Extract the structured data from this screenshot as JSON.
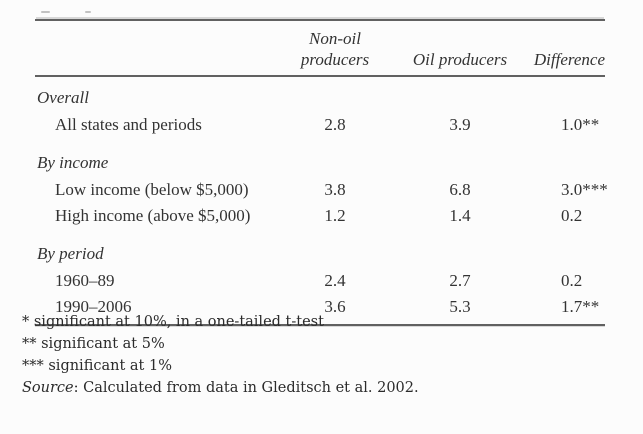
{
  "table": {
    "columns": [
      "Non-oil producers",
      "Oil producers",
      "Difference"
    ],
    "sections": [
      {
        "label": "Overall",
        "rows": [
          {
            "label": "All states and periods",
            "values": [
              "2.8",
              "3.9",
              "1.0**"
            ]
          }
        ]
      },
      {
        "label": "By income",
        "rows": [
          {
            "label": "Low income (below $5,000)",
            "values": [
              "3.8",
              "6.8",
              "3.0***"
            ]
          },
          {
            "label": "High income (above $5,000)",
            "values": [
              "1.2",
              "1.4",
              "0.2"
            ]
          }
        ]
      },
      {
        "label": "By period",
        "rows": [
          {
            "label": "1960–89",
            "values": [
              "2.4",
              "2.7",
              "0.2"
            ]
          },
          {
            "label": "1990–2006",
            "values": [
              "3.6",
              "5.3",
              "1.7**"
            ]
          }
        ]
      }
    ]
  },
  "notes": {
    "lines": [
      "* significant at 10%, in a one-tailed t-test",
      "** significant at 5%",
      "*** significant at 1%"
    ],
    "source_label": "Source",
    "source_text": ": Calculated from data in Gleditsch et al. 2002."
  },
  "colors": {
    "background": "#fcfcfc",
    "text": "#333333",
    "rule": "#616161"
  }
}
